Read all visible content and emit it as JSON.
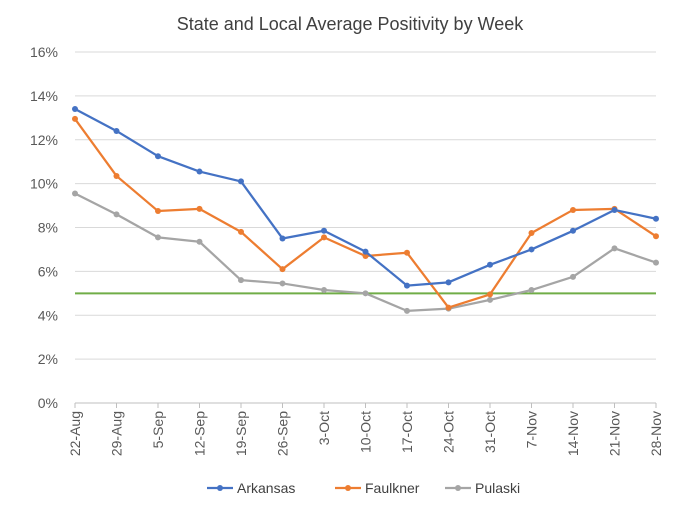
{
  "chart_data": {
    "type": "line",
    "title": "State and Local Average Positivity by Week",
    "xlabel": "",
    "ylabel": "",
    "ylim": [
      0,
      16
    ],
    "yticks": [
      "0%",
      "2%",
      "4%",
      "6%",
      "8%",
      "10%",
      "12%",
      "14%",
      "16%"
    ],
    "categories": [
      "22-Aug",
      "29-Aug",
      "5-Sep",
      "12-Sep",
      "19-Sep",
      "26-Sep",
      "3-Oct",
      "10-Oct",
      "17-Oct",
      "24-Oct",
      "31-Oct",
      "7-Nov",
      "14-Nov",
      "21-Nov",
      "28-Nov"
    ],
    "series": [
      {
        "name": "Arkansas",
        "color": "#4472c4",
        "values": [
          13.4,
          12.4,
          11.25,
          10.55,
          10.1,
          7.5,
          7.85,
          6.9,
          5.35,
          5.5,
          6.3,
          7.0,
          7.85,
          8.8,
          8.4
        ]
      },
      {
        "name": "Faulkner",
        "color": "#ed7d31",
        "values": [
          12.95,
          10.35,
          8.75,
          8.85,
          7.8,
          6.1,
          7.55,
          6.7,
          6.85,
          4.35,
          4.95,
          7.75,
          8.8,
          8.85,
          7.6
        ]
      },
      {
        "name": "Pulaski",
        "color": "#a5a5a5",
        "values": [
          9.55,
          8.6,
          7.55,
          7.35,
          5.6,
          5.45,
          5.15,
          5.0,
          4.2,
          4.3,
          4.7,
          5.15,
          5.75,
          7.05,
          6.4
        ]
      }
    ],
    "reference_line": {
      "value": 5,
      "color": "#70ad47"
    },
    "grid": true,
    "legend": "bottom-center"
  }
}
